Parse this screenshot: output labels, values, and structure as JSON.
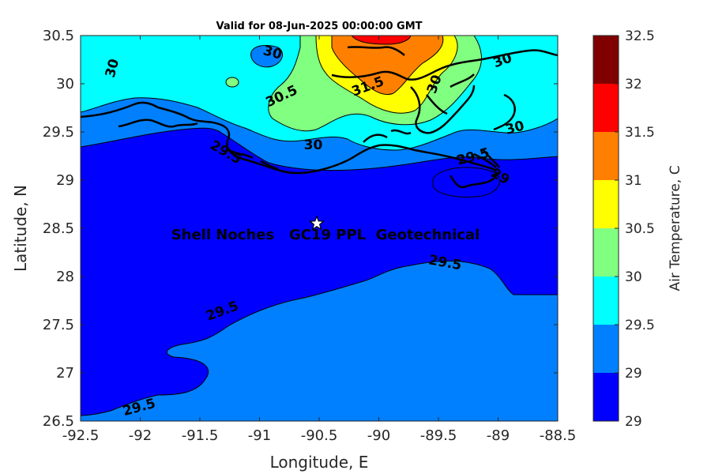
{
  "title": "Valid for 08-Jun-2025 00:00:00 GMT",
  "axes": {
    "xlabel": "Longitude, E",
    "ylabel": "Latitude, N",
    "xticks": [
      "-92.5",
      "-92",
      "-91.5",
      "-91",
      "-90.5",
      "-90",
      "-89.5",
      "-89",
      "-88.5"
    ],
    "yticks": [
      "30.5",
      "30",
      "29.5",
      "29",
      "28.5",
      "28",
      "27.5",
      "27",
      "26.5"
    ],
    "xlim": [
      -92.5,
      -88.5
    ],
    "ylim": [
      26.5,
      30.5
    ]
  },
  "colorbar": {
    "label": "Air Temperature, C",
    "levels": [
      "32.5",
      "32",
      "31.5",
      "31",
      "30.5",
      "30",
      "29.5",
      "29"
    ],
    "colors": [
      "#800000",
      "#ff0000",
      "#ff8000",
      "#ffff00",
      "#80ff80",
      "#00ffff",
      "#0080ff",
      "#0000ff"
    ]
  },
  "site": {
    "name": "Shell Noches   GC19 PPL  Geotechnical",
    "marker_icon": "star-icon",
    "lon": -90.52,
    "lat": 28.55
  },
  "contour_labels": [
    {
      "text": "30",
      "lon": -92.2,
      "lat": 30.15,
      "rot": -75
    },
    {
      "text": "30",
      "lon": -90.9,
      "lat": 30.28,
      "rot": 15
    },
    {
      "text": "30.5",
      "lon": -90.8,
      "lat": 29.83,
      "rot": -25
    },
    {
      "text": "31.5",
      "lon": -90.08,
      "lat": 29.93,
      "rot": -20
    },
    {
      "text": "30",
      "lon": -89.5,
      "lat": 29.98,
      "rot": -70
    },
    {
      "text": "30",
      "lon": -88.95,
      "lat": 30.2,
      "rot": -20
    },
    {
      "text": "30",
      "lon": -88.85,
      "lat": 29.5,
      "rot": -15
    },
    {
      "text": "30",
      "lon": -90.55,
      "lat": 29.32,
      "rot": 0
    },
    {
      "text": "29.5",
      "lon": -91.3,
      "lat": 29.25,
      "rot": 30
    },
    {
      "text": "29.5",
      "lon": -89.2,
      "lat": 29.2,
      "rot": -15
    },
    {
      "text": "29",
      "lon": -89.0,
      "lat": 29.0,
      "rot": 30
    },
    {
      "text": "29.5",
      "lon": -89.45,
      "lat": 28.1,
      "rot": 10
    },
    {
      "text": "29.5",
      "lon": -91.3,
      "lat": 27.6,
      "rot": -20
    },
    {
      "text": "29.5",
      "lon": -92.0,
      "lat": 26.6,
      "rot": -15
    }
  ]
}
